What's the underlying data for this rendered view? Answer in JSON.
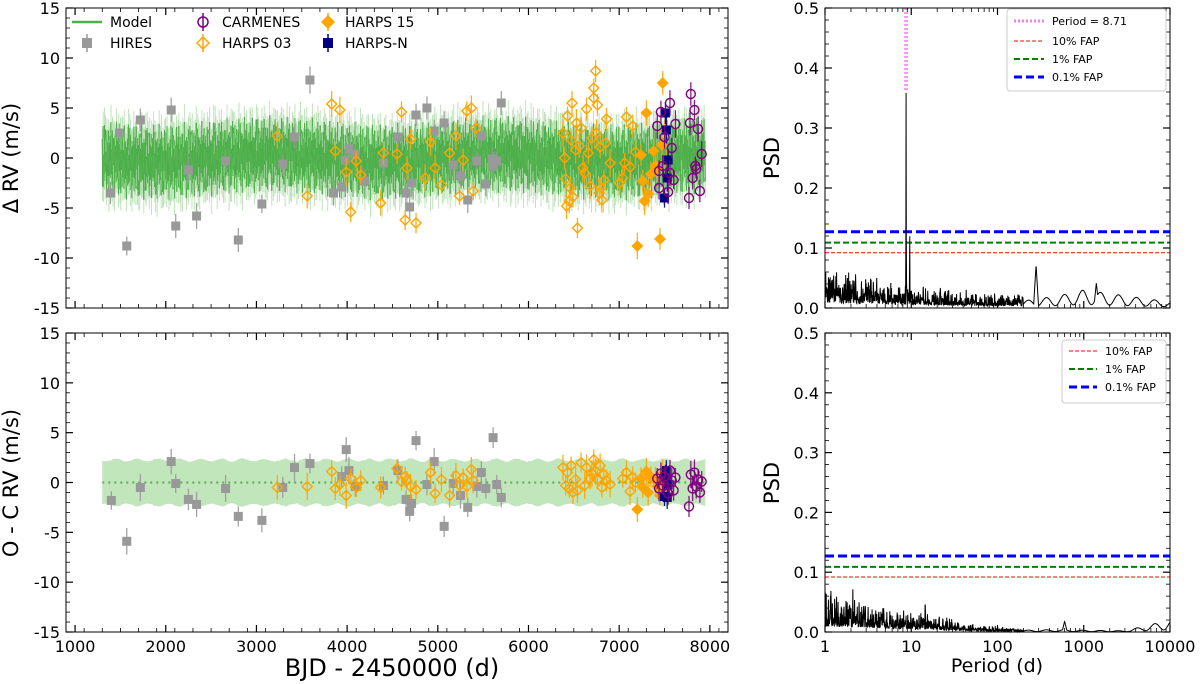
{
  "chart_data": [
    {
      "id": "rv",
      "type": "scatter",
      "xlabel": "",
      "ylabel": "Δ RV (m/s)",
      "xlim": [
        900,
        8200
      ],
      "ylim": [
        -15,
        15
      ],
      "xticks": [
        1000,
        2000,
        3000,
        4000,
        5000,
        6000,
        7000,
        8000
      ],
      "yticks": [
        -15,
        -10,
        -5,
        0,
        5,
        10,
        15
      ],
      "ytick_labels": [
        "-15",
        "-10",
        "-5",
        "0",
        "5",
        "10",
        "15"
      ],
      "xtick_labels_visible": false,
      "model_band": {
        "x_range": [
          1300,
          7950
        ],
        "band_half_width": 1.0,
        "model_line_color": "#4daf4a"
      },
      "legend": {
        "placement": "top-left",
        "entries": [
          {
            "label": "Model",
            "marker": "line",
            "color": "#4daf4a"
          },
          {
            "label": "HIRES",
            "marker": "square",
            "color": "#999999"
          },
          {
            "label": "CARMENES",
            "marker": "open-circle",
            "color": "#800080"
          },
          {
            "label": "HARPS 03",
            "marker": "open-diamond",
            "color": "#FFA500"
          },
          {
            "label": "HARPS 15",
            "marker": "diamond",
            "color": "#FFA500"
          },
          {
            "label": "HARPS-N",
            "marker": "square",
            "color": "#000080"
          }
        ]
      },
      "series": [
        {
          "name": "HIRES",
          "x": [
            1390,
            1570,
            1720,
            2060,
            2110,
            2340,
            2660,
            2800,
            3060,
            3290,
            3420,
            3590,
            3940,
            3980,
            4020,
            4090,
            4190,
            4560,
            4650,
            4690,
            4710,
            4760,
            4880,
            4960,
            5170,
            5250,
            5330,
            5430,
            5480,
            5530,
            5600,
            5650,
            5700,
            1490,
            2250,
            3850,
            4400,
            5070,
            5610
          ],
          "y": [
            -3.5,
            -8.8,
            3.8,
            4.8,
            -6.8,
            -5.8,
            -0.3,
            -8.2,
            -4.6,
            -0.6,
            2.1,
            7.8,
            -2.9,
            -0.2,
            0.9,
            0.4,
            -2.3,
            2.1,
            -3.5,
            -4.9,
            -2.5,
            4.3,
            5.0,
            2.7,
            -0.7,
            -1.8,
            -4.2,
            -0.3,
            2.2,
            -2.6,
            -0.1,
            -0.3,
            5.5,
            2.5,
            -1.2,
            -3.5,
            -0.5,
            3.5,
            -0.8
          ],
          "color": "#999999"
        },
        {
          "name": "HARPS 03",
          "x": [
            3230,
            3560,
            3830,
            3870,
            3920,
            3990,
            4040,
            4100,
            4150,
            4370,
            4550,
            4600,
            4640,
            4660,
            4700,
            4760,
            4920,
            4970,
            5040,
            5130,
            5200,
            5240,
            5280,
            5320,
            5370,
            5390,
            6380,
            6410,
            6430,
            6450,
            6470,
            6490,
            6520,
            6540,
            6580,
            6620,
            6640,
            6680,
            6700,
            6720,
            6740,
            6760,
            6790,
            6810,
            6830,
            6860,
            6900,
            7040,
            7080,
            7120,
            7150,
            7180,
            6400,
            6460,
            6530,
            6600,
            6660,
            6750,
            6780,
            6850,
            7000,
            7060,
            6420,
            6480,
            6560,
            6720,
            6800,
            4400,
            4860,
            5420
          ],
          "y": [
            2.2,
            -3.8,
            5.4,
            0.7,
            4.8,
            -1.4,
            -5.4,
            -0.3,
            -1.7,
            -4.5,
            0.4,
            4.6,
            -6.2,
            -1.0,
            1.9,
            -6.5,
            1.6,
            -1.0,
            -2.7,
            0.5,
            2.2,
            -3.8,
            -0.2,
            4.7,
            5.0,
            -3.3,
            2.5,
            -2.1,
            4.2,
            -4.3,
            1.8,
            -3.9,
            0.8,
            -7.0,
            3.0,
            -1.5,
            4.9,
            -2.8,
            2.0,
            7.0,
            8.7,
            5.3,
            1.1,
            -4.2,
            -2.2,
            3.9,
            -0.5,
            -2.0,
            4.1,
            -0.9,
            3.2,
            0.6,
            0.0,
            -3.0,
            3.5,
            -1.0,
            0.5,
            2.5,
            -3.5,
            1.5,
            -2.5,
            -0.5,
            -4.8,
            5.5,
            1.2,
            6.0,
            -3.0,
            0.5,
            -2.0,
            3.0
          ],
          "color": "#FFA500"
        },
        {
          "name": "HARPS 15",
          "x": [
            7200,
            7240,
            7260,
            7300,
            7320,
            7350,
            7400,
            7420,
            7450,
            7480,
            7500,
            7520,
            7470,
            7280,
            7380
          ],
          "y": [
            -8.8,
            0.3,
            -2.3,
            4.5,
            -3.6,
            -1.6,
            -0.8,
            -1.0,
            -8.1,
            7.5,
            2.8,
            -0.3,
            1.3,
            -4.3,
            0.7
          ],
          "color": "#FFA500"
        },
        {
          "name": "HARPS-N",
          "x": [
            7500,
            7510,
            7520,
            7530,
            7540
          ],
          "y": [
            -4.0,
            4.5,
            2.8,
            -2.0,
            -0.2
          ],
          "color": "#000080"
        },
        {
          "name": "CARMENES",
          "x": [
            7420,
            7440,
            7460,
            7480,
            7500,
            7540,
            7560,
            7580,
            7600,
            7620,
            7770,
            7790,
            7810,
            7830,
            7850,
            7870,
            7890,
            7910,
            7440,
            7560,
            7780,
            7840
          ],
          "y": [
            3.2,
            -1.3,
            4.6,
            -0.8,
            2.1,
            -3.4,
            5.5,
            1.0,
            -2.2,
            3.4,
            -4.0,
            6.4,
            -2.0,
            4.8,
            -1.1,
            2.9,
            -3.3,
            0.4,
            -3.0,
            -1.5,
            3.5,
            -0.8
          ],
          "color": "#800080"
        }
      ]
    },
    {
      "id": "oc",
      "type": "scatter",
      "xlabel": "BJD - 2450000 (d)",
      "ylabel": "O - C RV (m/s)",
      "xlim": [
        900,
        8200
      ],
      "ylim": [
        -15,
        15
      ],
      "xticks": [
        1000,
        2000,
        3000,
        4000,
        5000,
        6000,
        7000,
        8000
      ],
      "xtick_labels": [
        "1000",
        "2000",
        "3000",
        "4000",
        "5000",
        "6000",
        "7000",
        "8000"
      ],
      "yticks": [
        -15,
        -10,
        -5,
        0,
        5,
        10,
        15
      ],
      "ytick_labels": [
        "-15",
        "-10",
        "-5",
        "0",
        "5",
        "10",
        "15"
      ],
      "model_band": {
        "x_range": [
          1300,
          7950
        ],
        "band_half_width": 2.2,
        "band_color": "#a8dba0",
        "model_line_color": "#4daf4a"
      },
      "series": [
        {
          "name": "HIRES",
          "x": [
            1400,
            1570,
            1720,
            2060,
            2110,
            2250,
            2340,
            2660,
            2800,
            3060,
            3290,
            3420,
            3590,
            3940,
            3990,
            4020,
            4090,
            4400,
            4560,
            4650,
            4690,
            4710,
            4760,
            4880,
            4960,
            5070,
            5170,
            5250,
            5330,
            5430,
            5480,
            5530,
            5610,
            5650,
            5700
          ],
          "y": [
            -1.8,
            -5.9,
            -0.5,
            2.1,
            -0.1,
            -1.7,
            -2.2,
            -0.6,
            -3.4,
            -3.8,
            -0.5,
            1.5,
            1.9,
            0.6,
            3.3,
            1.2,
            -0.4,
            -0.3,
            1.2,
            -1.7,
            -2.9,
            -2.1,
            4.2,
            -0.2,
            2.1,
            -4.4,
            -0.1,
            -1.3,
            -2.5,
            -0.4,
            1.0,
            -0.6,
            4.5,
            -0.2,
            -1.5
          ],
          "color": "#999999"
        },
        {
          "name": "HARPS 03",
          "x": [
            3230,
            3560,
            3830,
            3870,
            3920,
            3990,
            4040,
            4100,
            4150,
            4370,
            4550,
            4600,
            4640,
            4660,
            4700,
            4760,
            4920,
            4970,
            5040,
            5130,
            5200,
            5240,
            5280,
            5320,
            5370,
            5390,
            6380,
            6410,
            6430,
            6450,
            6470,
            6490,
            6520,
            6540,
            6580,
            6620,
            6640,
            6680,
            6700,
            6720,
            6740,
            6760,
            6790,
            6810,
            6830,
            6860,
            6900,
            7040,
            7080,
            7120,
            7150,
            7180
          ],
          "y": [
            -0.5,
            -0.4,
            1.1,
            -0.6,
            -0.2,
            -1.3,
            0.4,
            -0.5,
            0.2,
            -0.5,
            1.4,
            0.1,
            0.6,
            0.2,
            -0.4,
            -0.7,
            1.0,
            -1.1,
            0.3,
            -1.3,
            0.7,
            -0.3,
            0.5,
            -0.4,
            1.3,
            0.2,
            1.5,
            -0.3,
            1.0,
            -0.6,
            1.7,
            -1.0,
            0.3,
            -0.8,
            2.0,
            -0.3,
            1.5,
            0.4,
            0.9,
            2.3,
            1.1,
            0.3,
            1.7,
            -0.5,
            0.8,
            0.2,
            -0.2,
            0.4,
            1.0,
            -0.9,
            0.5,
            0.0
          ],
          "color": "#FFA500"
        },
        {
          "name": "HARPS 15",
          "x": [
            7200,
            7240,
            7260,
            7300,
            7320,
            7350,
            7400,
            7420,
            7450,
            7480,
            7500,
            7520
          ],
          "y": [
            -2.7,
            0.4,
            -0.5,
            1.1,
            -1.0,
            0.6,
            0.2,
            -0.4,
            -1.3,
            0.9,
            -0.3,
            0.6
          ],
          "color": "#FFA500"
        },
        {
          "name": "HARPS-N",
          "x": [
            7500,
            7510,
            7520,
            7530,
            7540
          ],
          "y": [
            -1.4,
            0.6,
            1.2,
            -1.5,
            -0.2
          ],
          "color": "#000080"
        },
        {
          "name": "CARMENES",
          "x": [
            7420,
            7440,
            7460,
            7480,
            7500,
            7540,
            7560,
            7580,
            7600,
            7620,
            7770,
            7790,
            7810,
            7830,
            7850,
            7870,
            7890,
            7910
          ],
          "y": [
            0.4,
            -0.6,
            0.9,
            -0.3,
            0.6,
            -1.1,
            1.2,
            0.2,
            -0.8,
            0.5,
            -2.4,
            0.8,
            -0.6,
            1.0,
            -0.4,
            0.3,
            -1.0,
            0.1
          ],
          "color": "#800080"
        }
      ]
    },
    {
      "id": "psd-top",
      "type": "line",
      "xlabel": "",
      "ylabel": "PSD",
      "xscale": "log",
      "xlim": [
        1,
        10000
      ],
      "ylim": [
        0,
        0.5
      ],
      "xticks": [
        1,
        10,
        100,
        1000,
        10000
      ],
      "yticks": [
        0.0,
        0.1,
        0.2,
        0.3,
        0.4,
        0.5
      ],
      "ytick_labels": [
        "0.0",
        "0.1",
        "0.2",
        "0.3",
        "0.4",
        "0.5"
      ],
      "xtick_labels_visible": false,
      "peak_period": 8.71,
      "peak_power": 0.36,
      "thresholds": [
        {
          "label": "10% FAP",
          "value": 0.092,
          "color": "#ff0000",
          "style": "dashed-thin"
        },
        {
          "label": "1% FAP",
          "value": 0.109,
          "color": "#008000",
          "style": "dashed"
        },
        {
          "label": "0.1% FAP",
          "value": 0.127,
          "color": "#0000ff",
          "style": "dashed-thick"
        }
      ],
      "period_line": {
        "label": "Period = 8.71",
        "value": 8.71,
        "color": "#ee82ee"
      },
      "legend": {
        "placement": "top-right",
        "entries": [
          {
            "label": "Period = 8.71",
            "color": "#ee82ee",
            "style": "dotted"
          },
          {
            "label": "10% FAP",
            "color": "#ff0000",
            "style": "dashed-thin"
          },
          {
            "label": "1% FAP",
            "color": "#008000",
            "style": "dashed"
          },
          {
            "label": "0.1% FAP",
            "color": "#0000ff",
            "style": "dashed-thick"
          }
        ]
      },
      "spectrum_profile": {
        "noise_periods": [
          1,
          2,
          5,
          10,
          20,
          50,
          100,
          200,
          500,
          1000,
          10000
        ],
        "noise_levels": [
          0.03,
          0.025,
          0.02,
          0.018,
          0.015,
          0.012,
          0.01,
          0.012,
          0.02,
          0.03,
          0.01
        ],
        "features": [
          {
            "period": 8.71,
            "power": 0.36
          },
          {
            "period": 1.15,
            "power": 0.062
          },
          {
            "period": 1.6,
            "power": 0.05
          },
          {
            "period": 2.1,
            "power": 0.055
          },
          {
            "period": 9.6,
            "power": 0.14
          },
          {
            "period": 280,
            "power": 0.072
          },
          {
            "period": 1400,
            "power": 0.042
          }
        ]
      }
    },
    {
      "id": "psd-bottom",
      "type": "line",
      "xlabel": "Period (d)",
      "ylabel": "PSD",
      "xscale": "log",
      "xlim": [
        1,
        10000
      ],
      "ylim": [
        0,
        0.5
      ],
      "xticks": [
        1,
        10,
        100,
        1000,
        10000
      ],
      "xtick_labels": [
        "1",
        "10",
        "100",
        "1000",
        "10000"
      ],
      "yticks": [
        0.0,
        0.1,
        0.2,
        0.3,
        0.4,
        0.5
      ],
      "ytick_labels": [
        "0.0",
        "0.1",
        "0.2",
        "0.3",
        "0.4",
        "0.5"
      ],
      "thresholds": [
        {
          "label": "10% FAP",
          "value": 0.092,
          "color": "#ff0000",
          "style": "dashed-thin"
        },
        {
          "label": "1% FAP",
          "value": 0.109,
          "color": "#008000",
          "style": "dashed"
        },
        {
          "label": "0.1% FAP",
          "value": 0.127,
          "color": "#0000ff",
          "style": "dashed-thick"
        }
      ],
      "legend": {
        "placement": "top-right",
        "entries": [
          {
            "label": "10% FAP",
            "color": "#ff0000",
            "style": "dashed-thin"
          },
          {
            "label": "1% FAP",
            "color": "#008000",
            "style": "dashed"
          },
          {
            "label": "0.1% FAP",
            "color": "#0000ff",
            "style": "dashed-thick"
          }
        ]
      },
      "spectrum_profile": {
        "noise_periods": [
          1,
          2,
          5,
          10,
          20,
          50,
          100,
          200,
          500,
          1000,
          3000,
          10000
        ],
        "noise_levels": [
          0.03,
          0.028,
          0.02,
          0.015,
          0.012,
          0.006,
          0.004,
          0.003,
          0.004,
          0.003,
          0.002,
          0.02
        ],
        "features": [
          {
            "period": 2.1,
            "power": 0.085
          },
          {
            "period": 14.5,
            "power": 0.07
          },
          {
            "period": 1.3,
            "power": 0.05
          },
          {
            "period": 600,
            "power": 0.018
          }
        ]
      }
    }
  ]
}
